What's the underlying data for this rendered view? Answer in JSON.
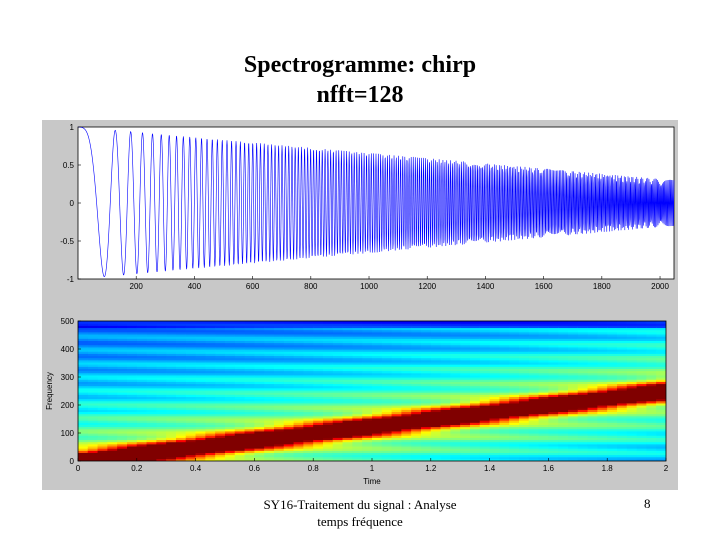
{
  "slide": {
    "title_line1": "Spectrogramme: chirp",
    "title_line2": "nfft=128",
    "footer_line1": "SY16-Traitement du signal : Analyse",
    "footer_line2": "temps fréquence",
    "page_number": "8"
  },
  "colors": {
    "figure_background": "#c8c8c8",
    "signal_line": "#0000ff",
    "axes_background": "#ffffff"
  },
  "chart_data": [
    {
      "type": "line",
      "title": "",
      "xlabel": "",
      "ylabel": "",
      "xlim": [
        0,
        2048
      ],
      "ylim": [
        -1,
        1
      ],
      "x_ticks": [
        200,
        400,
        600,
        800,
        1000,
        1200,
        1400,
        1600,
        1800,
        2000
      ],
      "y_ticks": [
        -1,
        -0.5,
        0,
        0.5,
        1
      ],
      "x_tick_labels": [
        "200",
        "400",
        "600",
        "800",
        "1000",
        "1200",
        "1400",
        "1600",
        "1800",
        "2000"
      ],
      "y_tick_labels": [
        "-1",
        "-0.5",
        "0",
        "0.5",
        "1"
      ],
      "series": [
        {
          "description_for_render": "chirp samples, frequency increasing linearly with sample index, amplitude decaying",
          "x_start": 1,
          "x_end": 2048,
          "amplitude_start": 1.0,
          "amplitude_end": 0.3
        }
      ],
      "grid": false
    },
    {
      "type": "heatmap",
      "title": "",
      "xlabel": "Time",
      "ylabel": "Frequency",
      "xlim": [
        0,
        2
      ],
      "ylim": [
        0,
        500
      ],
      "x_ticks": [
        0,
        0.2,
        0.4,
        0.6,
        0.8,
        1,
        1.2,
        1.4,
        1.6,
        1.8,
        2
      ],
      "y_ticks": [
        0,
        100,
        200,
        300,
        400,
        500
      ],
      "x_tick_labels": [
        "0",
        "0.2",
        "0.4",
        "0.6",
        "0.8",
        "1",
        "1.2",
        "1.4",
        "1.6",
        "1.8",
        "2"
      ],
      "y_tick_labels": [
        "0",
        "100",
        "200",
        "300",
        "400",
        "500"
      ],
      "ridge": {
        "start": {
          "time": 0,
          "frequency": 0
        },
        "end": {
          "time": 2,
          "frequency": 250
        }
      },
      "colormap": "jet",
      "grid": false
    }
  ]
}
